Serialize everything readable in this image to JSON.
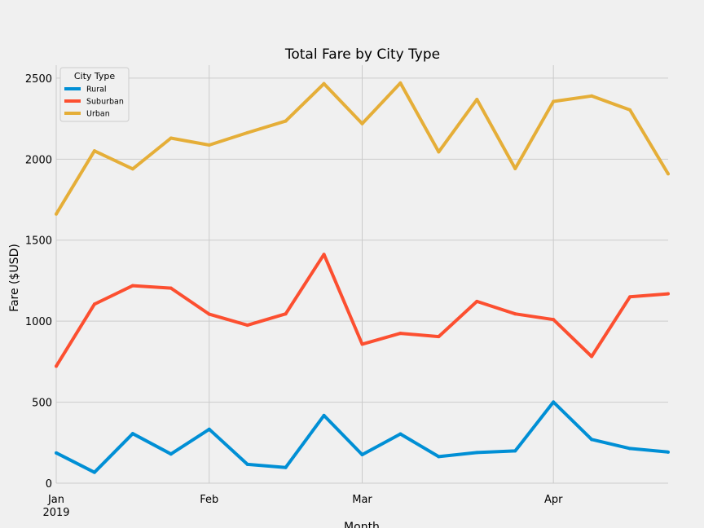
{
  "chart_data": {
    "type": "line",
    "title": "Total Fare by City Type",
    "xlabel": "Month",
    "ylabel": "Fare ($USD)",
    "ylim": [
      0,
      2580
    ],
    "yticks": [
      0,
      500,
      1000,
      1500,
      2000,
      2500
    ],
    "x": [
      "2019-01-06",
      "2019-01-13",
      "2019-01-20",
      "2019-01-27",
      "2019-02-03",
      "2019-02-10",
      "2019-02-17",
      "2019-02-24",
      "2019-03-03",
      "2019-03-10",
      "2019-03-17",
      "2019-03-24",
      "2019-03-31",
      "2019-04-07",
      "2019-04-14",
      "2019-04-21",
      "2019-04-28"
    ],
    "xticks": [
      {
        "index": 0,
        "label": "Jan",
        "sublabel": "2019"
      },
      {
        "index": 4,
        "label": "Feb",
        "sublabel": ""
      },
      {
        "index": 8,
        "label": "Mar",
        "sublabel": ""
      },
      {
        "index": 13,
        "label": "Apr",
        "sublabel": ""
      }
    ],
    "series": [
      {
        "name": "Rural",
        "color": "#008fd5",
        "values": [
          187,
          67,
          306,
          180,
          333,
          116,
          97,
          418,
          176,
          304,
          164,
          189,
          199,
          501,
          270,
          214,
          192
        ]
      },
      {
        "name": "Suburban",
        "color": "#fc4f30",
        "values": [
          722,
          1105,
          1219,
          1204,
          1043,
          975,
          1045,
          1412,
          858,
          925,
          905,
          1122,
          1045,
          1010,
          782,
          1150,
          1169
        ]
      },
      {
        "name": "Urban",
        "color": "#e5ae38",
        "values": [
          1661,
          2051,
          1940,
          2130,
          2087,
          2163,
          2235,
          2466,
          2219,
          2470,
          2045,
          2369,
          1942,
          2356,
          2390,
          2304,
          1909
        ]
      }
    ],
    "legend": {
      "title": "City Type",
      "position": "upper-left"
    },
    "grid": true
  }
}
